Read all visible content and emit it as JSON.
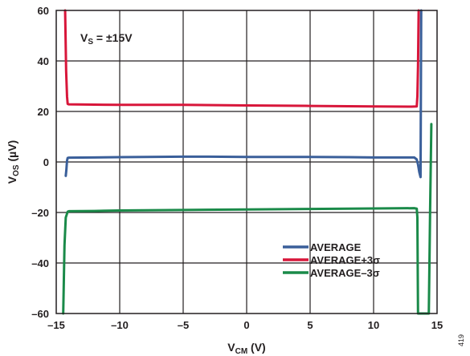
{
  "chart_data": {
    "type": "line",
    "xlabel": {
      "main": "V",
      "sub": "CM",
      "unit": " (V)"
    },
    "ylabel": {
      "main": "V",
      "sub": "OS",
      "unit": " (µV)"
    },
    "xlim": [
      -15,
      15
    ],
    "ylim": [
      -60,
      60
    ],
    "xticks": [
      -15,
      -10,
      -5,
      0,
      5,
      10,
      15
    ],
    "yticks": [
      -60,
      -40,
      -20,
      0,
      20,
      40,
      60
    ],
    "xtick_labels": [
      "–15",
      "–10",
      "–5",
      "0",
      "5",
      "10",
      "15"
    ],
    "ytick_labels": [
      "–60",
      "–40",
      "–20",
      "0",
      "20",
      "40",
      "60"
    ],
    "grid": true,
    "legend_placement": "bottom-right",
    "annotation": {
      "main": "V",
      "sub": "S",
      "rest": " = ±15V"
    },
    "figure_id": "419",
    "series": [
      {
        "name": "AVERAGE",
        "color": "#3a5f9a",
        "points": [
          [
            -14.25,
            -5.5
          ],
          [
            -14.2,
            -3
          ],
          [
            -14.15,
            0.5
          ],
          [
            -14.1,
            1.6
          ],
          [
            -14,
            1.7
          ],
          [
            -12,
            1.8
          ],
          [
            -10,
            1.9
          ],
          [
            -8,
            2
          ],
          [
            -5,
            2.1
          ],
          [
            -3,
            2.1
          ],
          [
            0,
            2
          ],
          [
            3,
            2
          ],
          [
            5,
            2
          ],
          [
            8,
            1.9
          ],
          [
            10,
            1.8
          ],
          [
            12,
            1.8
          ],
          [
            13.2,
            1.8
          ],
          [
            13.4,
            1
          ],
          [
            13.5,
            -1
          ],
          [
            13.6,
            -4
          ],
          [
            13.7,
            -6
          ],
          [
            13.75,
            60
          ]
        ]
      },
      {
        "name": "AVERAGE+3σ",
        "color": "#d8163a",
        "points": [
          [
            -14.3,
            60
          ],
          [
            -14.22,
            36
          ],
          [
            -14.15,
            26
          ],
          [
            -14.1,
            23
          ],
          [
            -14,
            22.8
          ],
          [
            -12,
            22.7
          ],
          [
            -10,
            22.6
          ],
          [
            -5,
            22.6
          ],
          [
            0,
            22.4
          ],
          [
            5,
            22.2
          ],
          [
            10,
            22
          ],
          [
            13,
            21.9
          ],
          [
            13.4,
            22
          ],
          [
            13.45,
            26
          ],
          [
            13.5,
            38
          ],
          [
            13.55,
            60
          ]
        ]
      },
      {
        "name": "AVERAGE–3σ",
        "color": "#1a8a49",
        "points": [
          [
            -14.45,
            -60
          ],
          [
            -14.35,
            -33
          ],
          [
            -14.25,
            -22
          ],
          [
            -14.1,
            -19.7
          ],
          [
            -14,
            -19.5
          ],
          [
            -12,
            -19.4
          ],
          [
            -10,
            -19.2
          ],
          [
            -5,
            -19
          ],
          [
            0,
            -18.8
          ],
          [
            5,
            -18.6
          ],
          [
            10,
            -18.4
          ],
          [
            13.2,
            -18.3
          ],
          [
            13.4,
            -18.5
          ],
          [
            13.45,
            -22
          ],
          [
            13.5,
            -60
          ],
          [
            14.35,
            -60
          ],
          [
            14.45,
            -20
          ],
          [
            14.55,
            15
          ]
        ]
      }
    ]
  }
}
